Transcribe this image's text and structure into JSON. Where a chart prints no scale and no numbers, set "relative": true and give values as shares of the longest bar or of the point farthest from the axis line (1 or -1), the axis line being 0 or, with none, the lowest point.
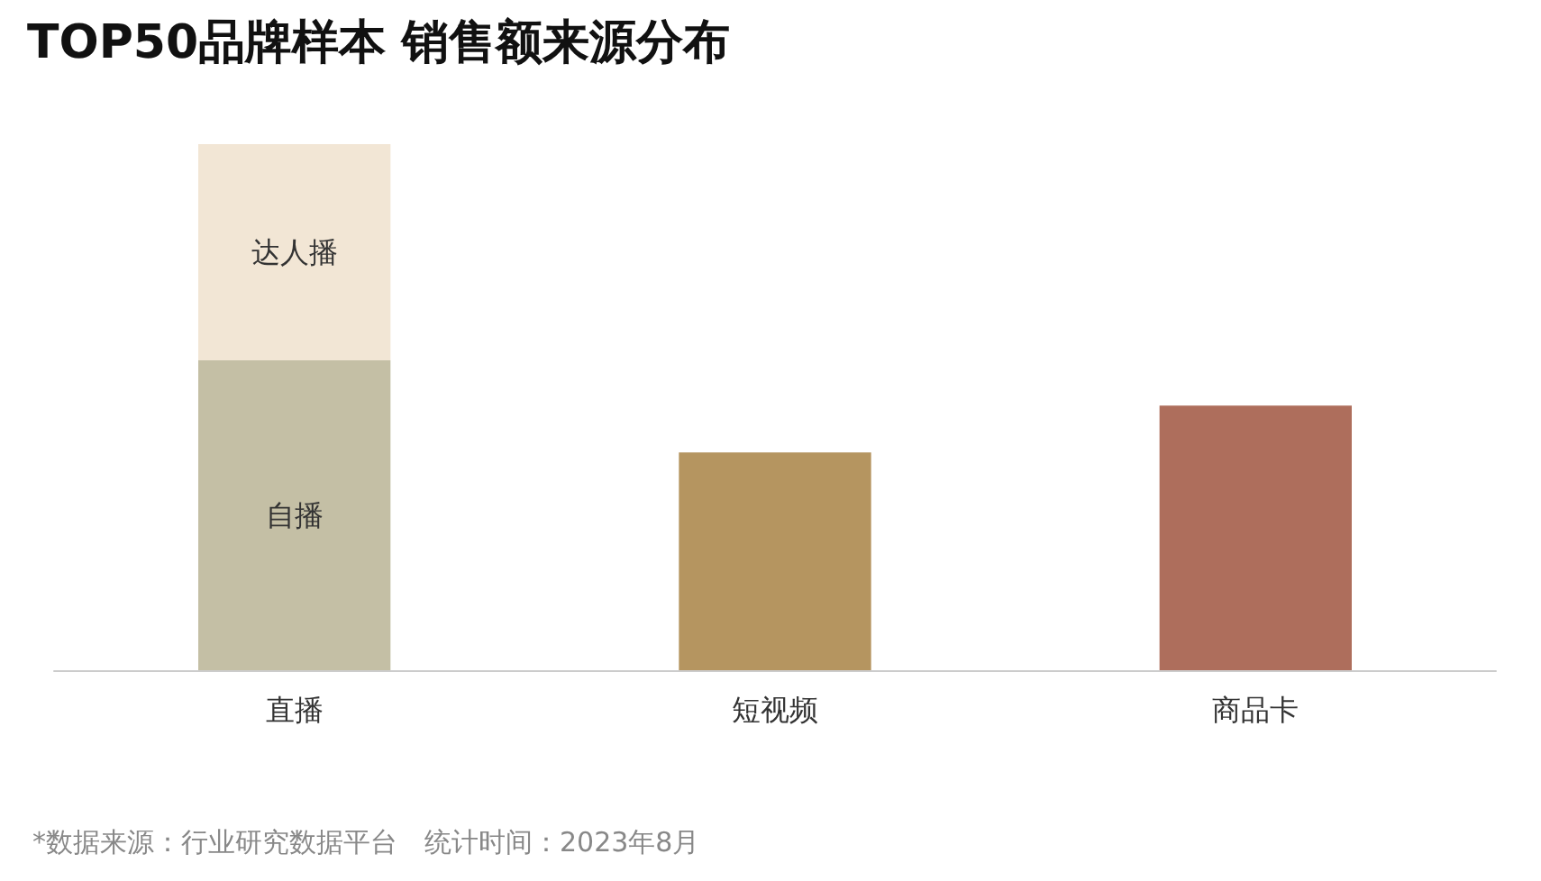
{
  "chart_data": {
    "type": "bar",
    "title": "TOP50品牌样本 销售额来源分布",
    "categories": [
      "直播",
      "短视频",
      "商品卡"
    ],
    "stacked": true,
    "relative": true,
    "series": [
      {
        "name": "自播",
        "color": "#c4bfa5",
        "values": [
          0.589,
          null,
          null
        ]
      },
      {
        "name": "达人播",
        "color": "#f2e6d5",
        "values": [
          0.411,
          null,
          null
        ]
      },
      {
        "colors": [
          "#b59560",
          "#b59560",
          "#ae6e5c"
        ],
        "values": [
          null,
          0.414,
          0.503
        ]
      }
    ],
    "annotations": [
      "*数据来源：行业研究数据平台　统计时间：2023年8月"
    ]
  }
}
